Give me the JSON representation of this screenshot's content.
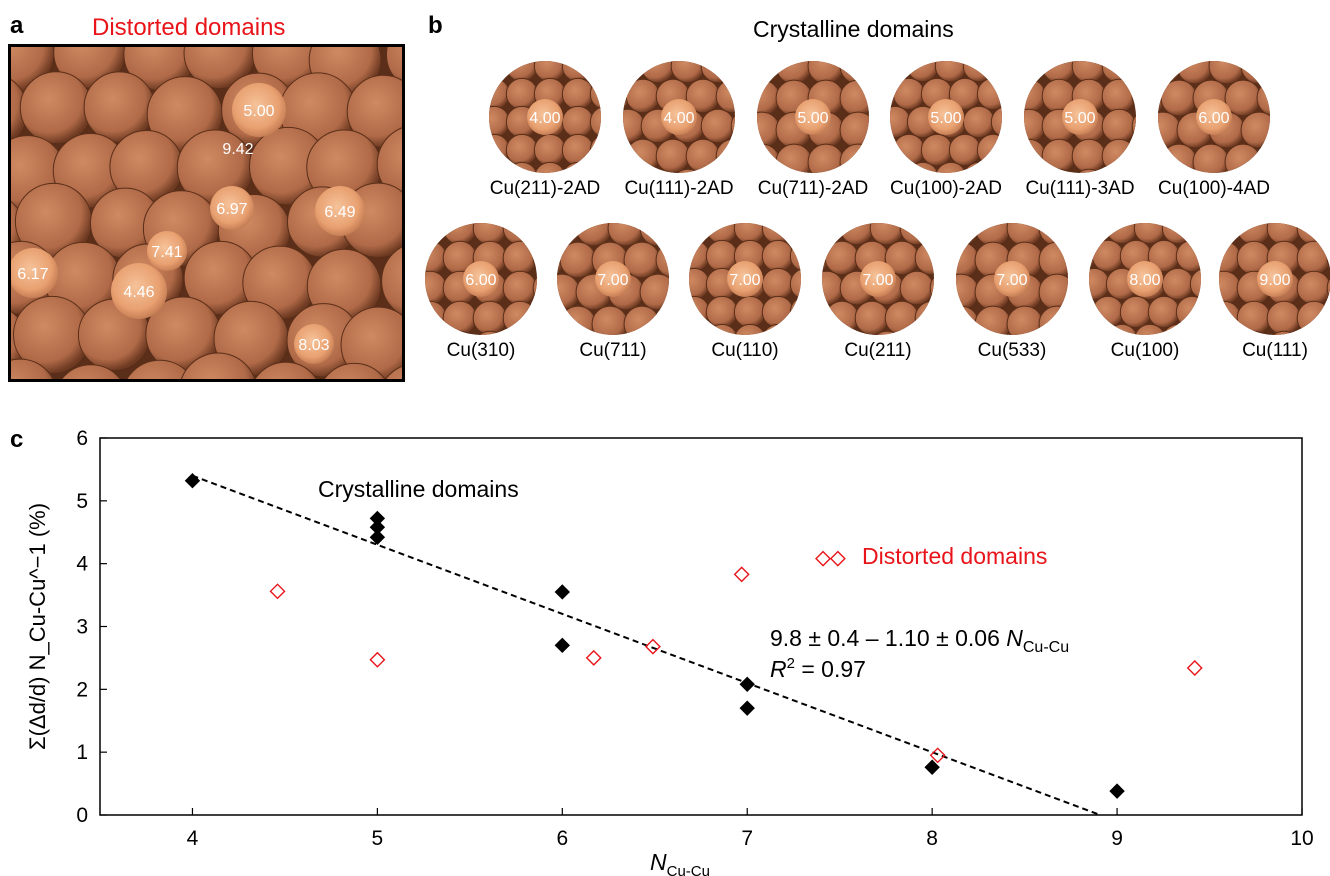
{
  "panel_a": {
    "label": "a",
    "title": "Distorted domains",
    "highlighted_atoms": [
      "5.00",
      "9.42",
      "6.97",
      "6.49",
      "7.41",
      "6.17",
      "4.46",
      "8.03"
    ]
  },
  "panel_b": {
    "label": "b",
    "title": "Crystalline domains",
    "row1": [
      {
        "value": "4.00",
        "label": "Cu(211)-2AD"
      },
      {
        "value": "4.00",
        "label": "Cu(111)-2AD"
      },
      {
        "value": "5.00",
        "label": "Cu(711)-2AD"
      },
      {
        "value": "5.00",
        "label": "Cu(100)-2AD"
      },
      {
        "value": "5.00",
        "label": "Cu(111)-3AD"
      },
      {
        "value": "6.00",
        "label": "Cu(100)-4AD"
      }
    ],
    "row2": [
      {
        "value": "6.00",
        "label": "Cu(310)"
      },
      {
        "value": "7.00",
        "label": "Cu(711)"
      },
      {
        "value": "7.00",
        "label": "Cu(110)"
      },
      {
        "value": "7.00",
        "label": "Cu(211)"
      },
      {
        "value": "7.00",
        "label": "Cu(533)"
      },
      {
        "value": "8.00",
        "label": "Cu(100)"
      },
      {
        "value": "9.00",
        "label": "Cu(111)"
      }
    ]
  },
  "panel_c": {
    "label": "c"
  },
  "colors": {
    "distorted": "#e8141a",
    "crystalline": "#000000",
    "atom": "#b06a48",
    "atom_highlight": "#e8a070"
  },
  "chart_data": {
    "type": "scatter",
    "xlabel_main": "N",
    "xlabel_sub": "Cu-Cu",
    "ylabel": "Σ(Δd/d) N_Cu-Cu^−1 (%)",
    "xlim": [
      3.5,
      10
    ],
    "ylim": [
      0,
      6
    ],
    "xticks": [
      4,
      5,
      6,
      7,
      8,
      9,
      10
    ],
    "yticks": [
      0,
      1,
      2,
      3,
      4,
      5,
      6
    ],
    "series": [
      {
        "name": "Crystalline domains",
        "marker": "filled-diamond",
        "points": [
          [
            4,
            5.32
          ],
          [
            5,
            4.72
          ],
          [
            5,
            4.58
          ],
          [
            5,
            4.42
          ],
          [
            6,
            3.55
          ],
          [
            6,
            2.7
          ],
          [
            7,
            2.08
          ],
          [
            7,
            1.7
          ],
          [
            8,
            0.76
          ],
          [
            9,
            0.38
          ]
        ]
      },
      {
        "name": "Distorted domains",
        "marker": "open-diamond",
        "points": [
          [
            4.46,
            3.56
          ],
          [
            5.0,
            2.47
          ],
          [
            6.17,
            2.5
          ],
          [
            6.49,
            2.68
          ],
          [
            6.97,
            3.83
          ],
          [
            7.41,
            4.08
          ],
          [
            8.03,
            0.95
          ],
          [
            9.42,
            2.34
          ]
        ]
      }
    ],
    "fit": {
      "intercept": 9.8,
      "slope": -1.1,
      "equation_main": "9.8 ± 0.4 – 1.10 ± 0.06 N",
      "equation_sub": "Cu-Cu",
      "r2_label": "R",
      "r2_sup": "2",
      "r2_value": " = 0.97"
    }
  }
}
